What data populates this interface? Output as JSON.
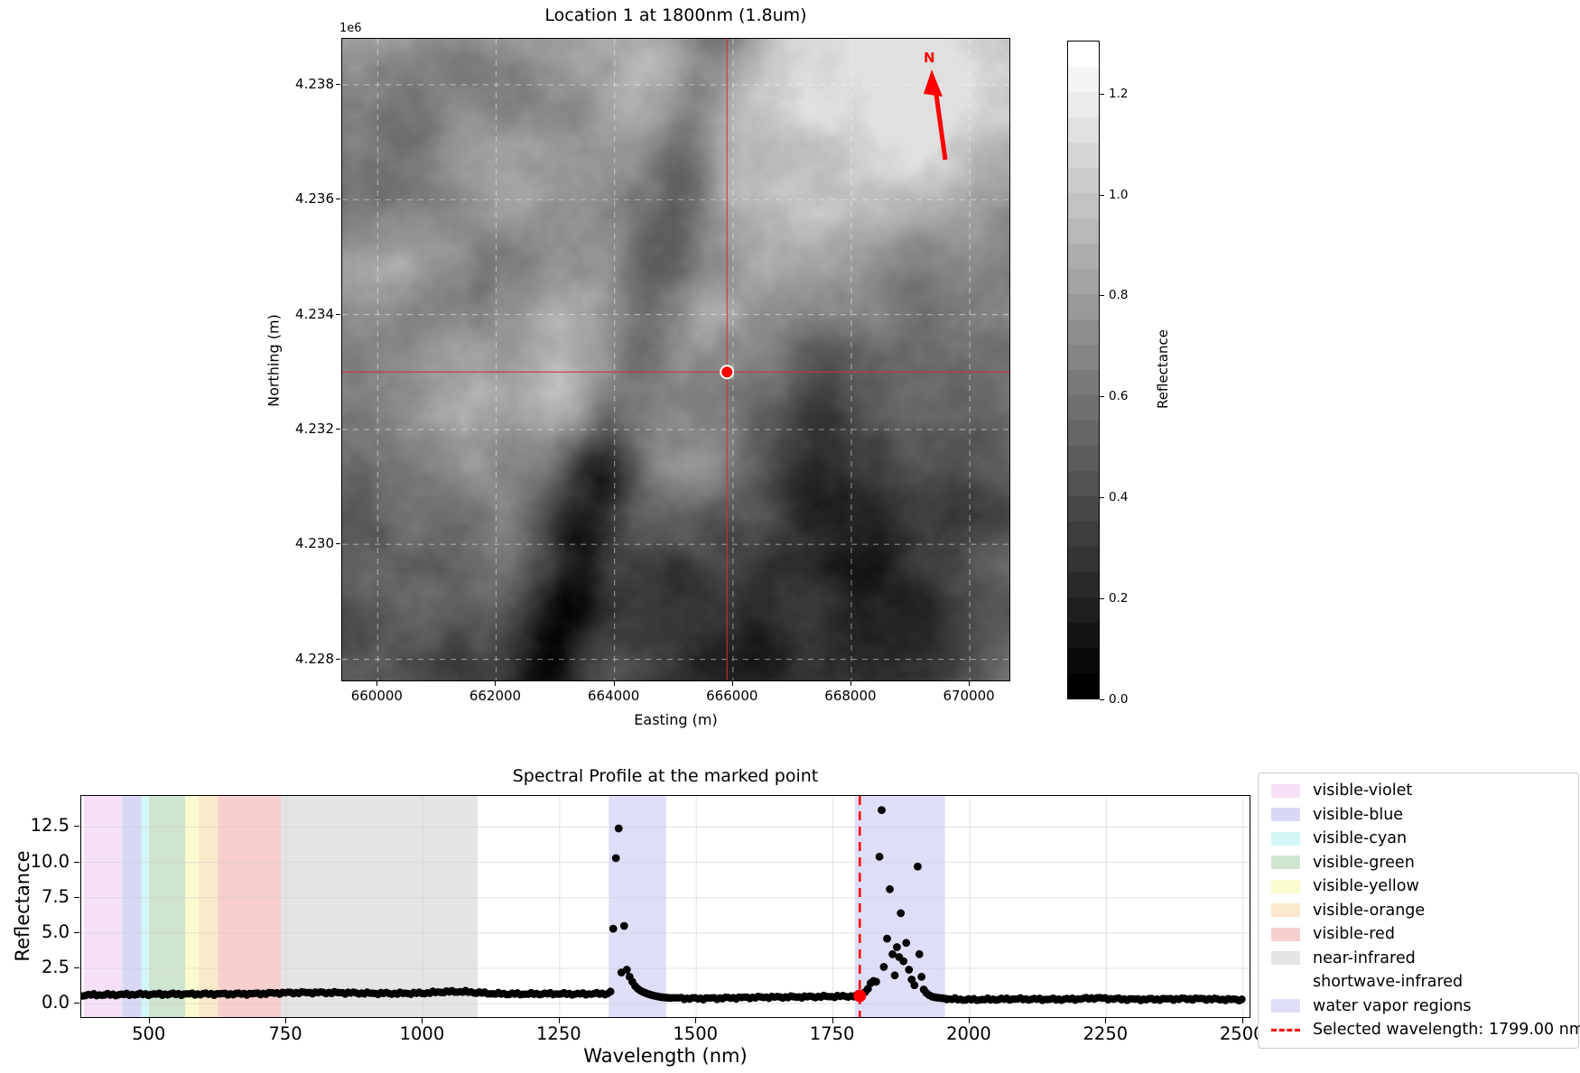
{
  "chart_data": [
    {
      "type": "heatmap",
      "title": "Location 1 at 1800nm (1.8um)",
      "xlabel": "Easting (m)",
      "ylabel": "Northing (m)",
      "y_offset_label": "1e6",
      "x_ticks_m": [
        660000,
        662000,
        664000,
        666000,
        668000,
        670000
      ],
      "x_tick_labels": [
        "660000",
        "662000",
        "664000",
        "666000",
        "668000",
        "670000"
      ],
      "y_ticks_m": [
        4238000,
        4236000,
        4234000,
        4232000,
        4230000,
        4228000
      ],
      "y_tick_labels": [
        "4.238",
        "4.236",
        "4.234",
        "4.232",
        "4.230",
        "4.228"
      ],
      "x_range_m": [
        659400,
        670700
      ],
      "y_range_m": [
        4227600,
        4238800
      ],
      "grid": true,
      "cmap": "gray",
      "marker": {
        "easting_m": 665900,
        "northing_m": 4233000,
        "color": "#ff0000",
        "edge": "#ffffff"
      },
      "north_arrow_label": "N",
      "north_arrow_color": "#ff0000",
      "crosshair_color": "#d03030",
      "colorbar": {
        "label": "Reflectance",
        "tick_values": [
          0.0,
          0.2,
          0.4,
          0.6,
          0.8,
          1.0,
          1.2
        ],
        "tick_labels": [
          "0.0",
          "0.2",
          "0.4",
          "0.6",
          "0.8",
          "1.0",
          "1.2"
        ],
        "vmin": 0.0,
        "vmax": 1.305
      }
    },
    {
      "type": "scatter",
      "title": "Spectral Profile at the marked point",
      "xlabel": "Wavelength (nm)",
      "ylabel": "Reflectance",
      "x_ticks": [
        500,
        750,
        1000,
        1250,
        1500,
        1750,
        2000,
        2250,
        2500
      ],
      "x_tick_labels": [
        "500",
        "750",
        "1000",
        "1250",
        "1500",
        "1750",
        "2000",
        "2250",
        "2500"
      ],
      "y_ticks": [
        0.0,
        2.5,
        5.0,
        7.5,
        10.0,
        12.5
      ],
      "y_tick_labels": [
        "0.0",
        "2.5",
        "5.0",
        "7.5",
        "10.0",
        "12.5"
      ],
      "xlim": [
        375,
        2512
      ],
      "ylim": [
        -0.95,
        14.7
      ],
      "grid": true,
      "marker_color": "#000000",
      "bands": [
        {
          "name": "visible-violet",
          "from_nm": 380,
          "to_nm": 450,
          "color": "#f5e0f7"
        },
        {
          "name": "visible-blue",
          "from_nm": 450,
          "to_nm": 485,
          "color": "#d8d8f6"
        },
        {
          "name": "visible-cyan",
          "from_nm": 485,
          "to_nm": 500,
          "color": "#d2f6f6"
        },
        {
          "name": "visible-green",
          "from_nm": 500,
          "to_nm": 565,
          "color": "#d0e5d0"
        },
        {
          "name": "visible-yellow",
          "from_nm": 565,
          "to_nm": 590,
          "color": "#fbfbd0"
        },
        {
          "name": "visible-orange",
          "from_nm": 590,
          "to_nm": 625,
          "color": "#fae8ca"
        },
        {
          "name": "visible-red",
          "from_nm": 625,
          "to_nm": 740,
          "color": "#f8cfcf"
        },
        {
          "name": "near-infrared",
          "from_nm": 740,
          "to_nm": 1100,
          "color": "#e4e4e4"
        },
        {
          "name": "shortwave-infrared",
          "from_nm": 1100,
          "to_nm": 2500,
          "color": "#ffffff"
        },
        {
          "name": "water vapor regions",
          "from_nm": 1340,
          "to_nm": 1445,
          "color": "#dedef8"
        },
        {
          "name": "water vapor regions",
          "from_nm": 1790,
          "to_nm": 1955,
          "color": "#dedef8"
        }
      ],
      "legend": {
        "items": [
          {
            "label": "visible-violet",
            "swatch": "#f5e0f7",
            "kind": "patch"
          },
          {
            "label": "visible-blue",
            "swatch": "#d8d8f6",
            "kind": "patch"
          },
          {
            "label": "visible-cyan",
            "swatch": "#d2f6f6",
            "kind": "patch"
          },
          {
            "label": "visible-green",
            "swatch": "#d0e5d0",
            "kind": "patch"
          },
          {
            "label": "visible-yellow",
            "swatch": "#fbfbd0",
            "kind": "patch"
          },
          {
            "label": "visible-orange",
            "swatch": "#fae8ca",
            "kind": "patch"
          },
          {
            "label": "visible-red",
            "swatch": "#f8cfcf",
            "kind": "patch"
          },
          {
            "label": "near-infrared",
            "swatch": "#e4e4e4",
            "kind": "patch"
          },
          {
            "label": "shortwave-infrared",
            "swatch": "#ffffff",
            "kind": "patch"
          },
          {
            "label": "water vapor regions",
            "swatch": "#dedef8",
            "kind": "patch"
          },
          {
            "label": "Selected wavelength: 1799.00 nm",
            "swatch": "#ff0000",
            "kind": "dashed-line"
          }
        ]
      },
      "selected": {
        "wavelength_nm": 1799.0,
        "reflectance": 0.55,
        "line_color": "#ff0000",
        "label": "Selected wavelength: 1799.00 nm"
      },
      "spectrum": {
        "sample_step_nm": 5,
        "smooth_regions": [
          [
            378,
            1338
          ],
          [
            1458,
            1795
          ],
          [
            1958,
            2500
          ]
        ],
        "baseline_anchors": [
          [
            378,
            0.6
          ],
          [
            400,
            0.62
          ],
          [
            430,
            0.63
          ],
          [
            460,
            0.65
          ],
          [
            500,
            0.66
          ],
          [
            550,
            0.67
          ],
          [
            600,
            0.68
          ],
          [
            650,
            0.68
          ],
          [
            700,
            0.7
          ],
          [
            740,
            0.76
          ],
          [
            800,
            0.78
          ],
          [
            850,
            0.77
          ],
          [
            900,
            0.73
          ],
          [
            950,
            0.72
          ],
          [
            1000,
            0.74
          ],
          [
            1040,
            0.84
          ],
          [
            1070,
            0.85
          ],
          [
            1100,
            0.78
          ],
          [
            1130,
            0.7
          ],
          [
            1180,
            0.68
          ],
          [
            1230,
            0.7
          ],
          [
            1280,
            0.68
          ],
          [
            1338,
            0.71
          ],
          [
            1458,
            0.39
          ],
          [
            1500,
            0.36
          ],
          [
            1540,
            0.38
          ],
          [
            1580,
            0.42
          ],
          [
            1620,
            0.45
          ],
          [
            1660,
            0.46
          ],
          [
            1700,
            0.48
          ],
          [
            1740,
            0.5
          ],
          [
            1795,
            0.53
          ],
          [
            1958,
            0.33
          ],
          [
            2000,
            0.28
          ],
          [
            2040,
            0.3
          ],
          [
            2080,
            0.33
          ],
          [
            2120,
            0.31
          ],
          [
            2160,
            0.3
          ],
          [
            2200,
            0.33
          ],
          [
            2230,
            0.4
          ],
          [
            2260,
            0.34
          ],
          [
            2300,
            0.3
          ],
          [
            2340,
            0.31
          ],
          [
            2380,
            0.33
          ],
          [
            2420,
            0.34
          ],
          [
            2460,
            0.3
          ],
          [
            2500,
            0.28
          ]
        ],
        "spike_points": [
          [
            1343,
            0.85
          ],
          [
            1348,
            5.3
          ],
          [
            1353,
            10.3
          ],
          [
            1358,
            12.4
          ],
          [
            1363,
            2.2
          ],
          [
            1368,
            5.5
          ],
          [
            1373,
            2.4
          ],
          [
            1378,
            1.9
          ],
          [
            1383,
            1.55
          ],
          [
            1388,
            1.25
          ],
          [
            1393,
            1.05
          ],
          [
            1398,
            0.92
          ],
          [
            1403,
            0.82
          ],
          [
            1408,
            0.74
          ],
          [
            1413,
            0.67
          ],
          [
            1418,
            0.61
          ],
          [
            1423,
            0.56
          ],
          [
            1428,
            0.52
          ],
          [
            1433,
            0.48
          ],
          [
            1438,
            0.45
          ],
          [
            1443,
            0.43
          ],
          [
            1448,
            0.41
          ],
          [
            1453,
            0.4
          ],
          [
            1799,
            0.55
          ],
          [
            1804,
            0.68
          ],
          [
            1809,
            0.82
          ],
          [
            1814,
            1.05
          ],
          [
            1819,
            1.45
          ],
          [
            1824,
            1.6
          ],
          [
            1829,
            1.55
          ],
          [
            1835,
            10.4
          ],
          [
            1839,
            13.7
          ],
          [
            1843,
            2.6
          ],
          [
            1849,
            4.6
          ],
          [
            1854,
            8.1
          ],
          [
            1859,
            3.5
          ],
          [
            1863,
            2.0
          ],
          [
            1867,
            4.0
          ],
          [
            1871,
            3.3
          ],
          [
            1874,
            6.4
          ],
          [
            1879,
            3.0
          ],
          [
            1884,
            4.3
          ],
          [
            1889,
            2.4
          ],
          [
            1894,
            1.7
          ],
          [
            1899,
            1.3
          ],
          [
            1905,
            9.7
          ],
          [
            1908,
            3.5
          ],
          [
            1912,
            1.9
          ],
          [
            1916,
            1.0
          ],
          [
            1921,
            0.75
          ],
          [
            1926,
            0.6
          ],
          [
            1931,
            0.5
          ],
          [
            1936,
            0.45
          ],
          [
            1941,
            0.42
          ],
          [
            1946,
            0.4
          ],
          [
            1951,
            0.38
          ],
          [
            1956,
            0.35
          ]
        ]
      }
    }
  ]
}
